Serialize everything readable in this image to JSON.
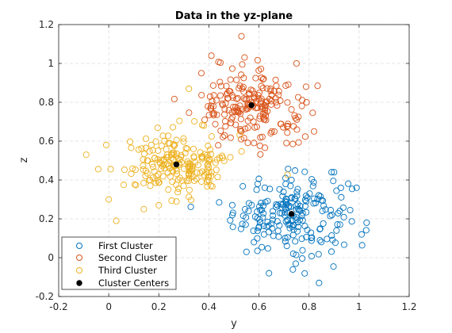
{
  "chart_data": {
    "type": "scatter",
    "title": "Data in the yz-plane",
    "xlabel": "y",
    "ylabel": "z",
    "xlim": [
      -0.2,
      1.2
    ],
    "ylim": [
      -0.2,
      1.2
    ],
    "xticks": [
      -0.2,
      0,
      0.2,
      0.4,
      0.6,
      0.8,
      1,
      1.2
    ],
    "yticks": [
      -0.2,
      0,
      0.2,
      0.4,
      0.6,
      0.8,
      1,
      1.2
    ],
    "xtick_labels": [
      "-0.2",
      "0",
      "0.2",
      "0.4",
      "0.6",
      "0.8",
      "1",
      "1.2"
    ],
    "ytick_labels": [
      "-0.2",
      "0",
      "0.2",
      "0.4",
      "0.6",
      "0.8",
      "1",
      "1.2"
    ],
    "grid": true,
    "legend_position": "bottom-left",
    "series": [
      {
        "name": "First Cluster",
        "color": "#0072BD",
        "marker": "open-circle",
        "center": [
          0.73,
          0.225
        ],
        "spread": [
          0.115,
          0.1
        ],
        "count": 200,
        "points": [
          [
            0.55,
            0.03
          ],
          [
            0.64,
            -0.08
          ],
          [
            0.84,
            -0.13
          ],
          [
            0.73,
            0.4
          ],
          [
            0.89,
            0.44
          ],
          [
            0.9,
            0.44
          ],
          [
            0.56,
            0.28
          ],
          [
            1.03,
            0.18
          ],
          [
            0.58,
            0.08
          ],
          [
            0.62,
            0.12
          ],
          [
            0.99,
            0.36
          ],
          [
            1.01,
            0.12
          ]
        ]
      },
      {
        "name": "Second Cluster",
        "color": "#D95319",
        "marker": "open-circle",
        "center": [
          0.57,
          0.785
        ],
        "spread": [
          0.1,
          0.095
        ],
        "count": 200,
        "points": [
          [
            0.53,
            1.14
          ],
          [
            0.41,
            1.04
          ],
          [
            0.37,
            0.95
          ],
          [
            0.75,
            1.0
          ],
          [
            0.43,
            0.81
          ],
          [
            0.48,
            0.76
          ],
          [
            0.82,
            0.65
          ],
          [
            0.71,
            0.59
          ],
          [
            0.79,
            0.8
          ],
          [
            0.53,
            0.65
          ]
        ]
      },
      {
        "name": "Third Cluster",
        "color": "#EDB120",
        "marker": "open-circle",
        "center": [
          0.27,
          0.48
        ],
        "spread": [
          0.1,
          0.085
        ],
        "count": 200,
        "points": [
          [
            -0.09,
            0.53
          ],
          [
            0.03,
            0.19
          ],
          [
            0.32,
            0.87
          ],
          [
            0.38,
            0.68
          ],
          [
            0.41,
            0.44
          ],
          [
            0.0,
            0.3
          ],
          [
            0.37,
            0.52
          ],
          [
            0.14,
            0.25
          ],
          [
            -0.01,
            0.58
          ],
          [
            0.2,
            0.27
          ]
        ]
      },
      {
        "name": "Cluster Centers",
        "color": "#000000",
        "marker": "filled-circle",
        "points": [
          [
            0.73,
            0.225
          ],
          [
            0.57,
            0.785
          ],
          [
            0.27,
            0.48
          ]
        ]
      }
    ]
  }
}
